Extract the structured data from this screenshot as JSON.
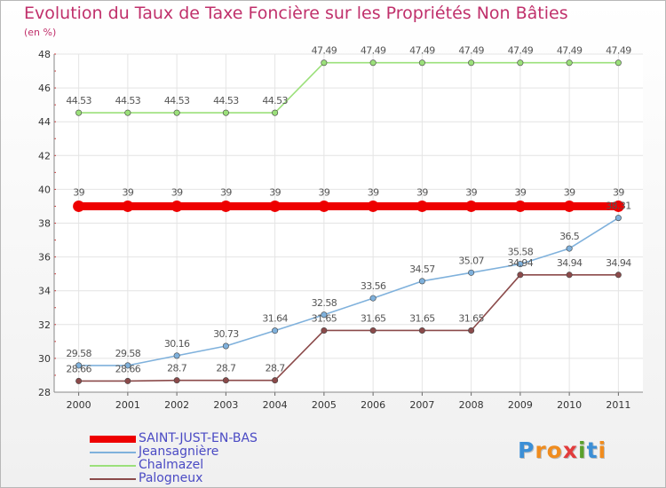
{
  "title": "Evolution du Taux de Taxe Foncière sur les Propriétés Non Bâties",
  "subtitle": "(en %)",
  "logo": {
    "letters": [
      "P",
      "r",
      "o",
      "x",
      "i",
      "t",
      "i"
    ],
    "colors": [
      "#3c8fd6",
      "#f08c1e",
      "#f08c1e",
      "#e23c3c",
      "#5aa02c",
      "#3c8fd6",
      "#f08c1e"
    ]
  },
  "chart_data": {
    "type": "line",
    "title": "Evolution du Taux de Taxe Foncière sur les Propriétés Non Bâties",
    "ylabel": "(en %)",
    "xlabel": "",
    "x": [
      "2000",
      "2001",
      "2002",
      "2003",
      "2004",
      "2005",
      "2006",
      "2007",
      "2008",
      "2009",
      "2010",
      "2011"
    ],
    "ylim": [
      28,
      48
    ],
    "yticks": [
      28,
      30,
      32,
      34,
      36,
      38,
      40,
      42,
      44,
      46,
      48
    ],
    "grid": true,
    "legend_position": "bottom-left",
    "series": [
      {
        "name": "SAINT-JUST-EN-BAS",
        "color": "#ee0000",
        "values": [
          39,
          39,
          39,
          39,
          39,
          39,
          39,
          39,
          39,
          39,
          39,
          39
        ],
        "labels": [
          "39",
          "39",
          "39",
          "39",
          "39",
          "39",
          "39",
          "39",
          "39",
          "39",
          "39",
          "39"
        ]
      },
      {
        "name": "Jeansagnière",
        "color": "#7fb1dc",
        "values": [
          29.58,
          29.58,
          30.16,
          30.73,
          31.64,
          32.58,
          33.56,
          34.57,
          35.07,
          35.58,
          36.5,
          38.31
        ],
        "labels": [
          "29.58",
          "29.58",
          "30.16",
          "30.73",
          "31.64",
          "32.58",
          "33.56",
          "34.57",
          "35.07",
          "35.58",
          "36.5",
          "38.31"
        ]
      },
      {
        "name": "Chalmazel",
        "color": "#9be07a",
        "values": [
          44.53,
          44.53,
          44.53,
          44.53,
          44.53,
          47.49,
          47.49,
          47.49,
          47.49,
          47.49,
          47.49,
          47.49
        ],
        "labels": [
          "44.53",
          "44.53",
          "44.53",
          "44.53",
          "44.53",
          "47.49",
          "47.49",
          "47.49",
          "47.49",
          "47.49",
          "47.49",
          "47.49"
        ]
      },
      {
        "name": "Palogneux",
        "color": "#8b4a4a",
        "values": [
          28.66,
          28.66,
          28.7,
          28.7,
          28.7,
          31.65,
          31.65,
          31.65,
          31.65,
          34.94,
          34.94,
          34.94
        ],
        "labels": [
          "28.66",
          "28.66",
          "28.7",
          "28.7",
          "28.7",
          "31.65",
          "31.65",
          "31.65",
          "31.65",
          "34.94",
          "34.94",
          "34.94"
        ]
      }
    ]
  }
}
